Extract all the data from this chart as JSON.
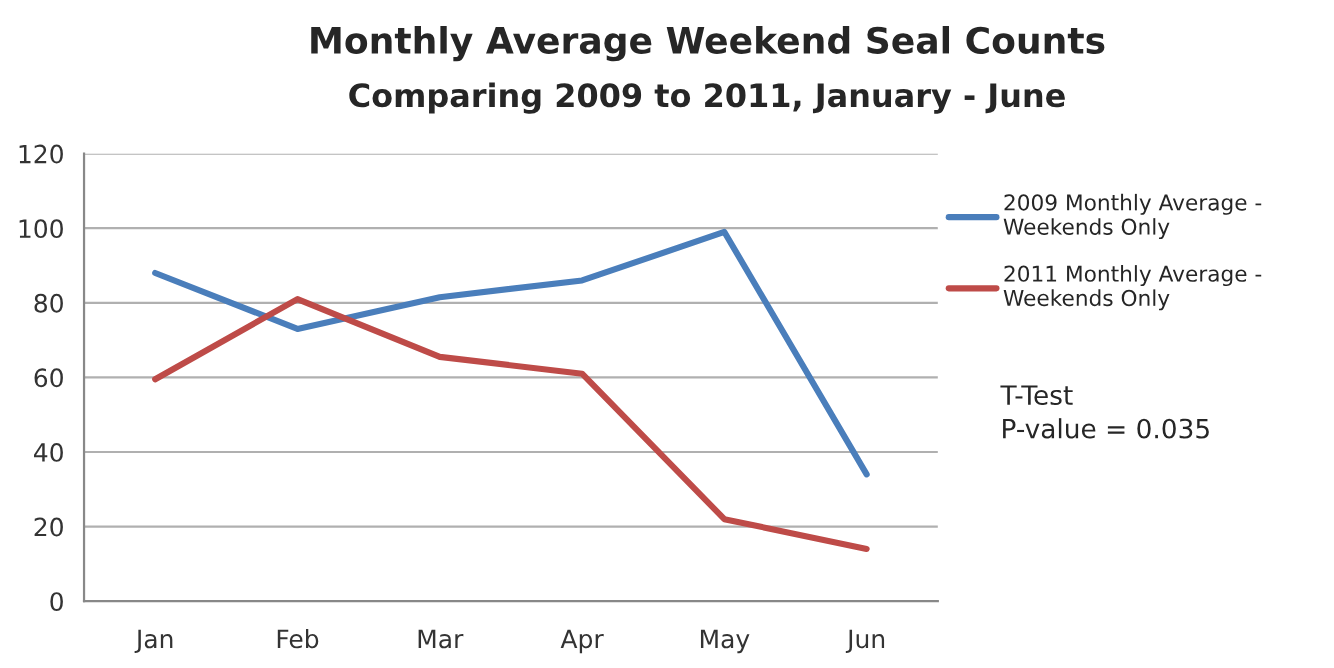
{
  "chart_data": {
    "type": "line",
    "title": "Monthly Average Weekend Seal Counts",
    "subtitle": "Comparing 2009 to 2011, January - June",
    "categories": [
      "Jan",
      "Feb",
      "Mar",
      "Apr",
      "May",
      "Jun"
    ],
    "series": [
      {
        "name": "2009 Monthly Average -\nWeekends Only",
        "color": "#4a7ebb",
        "values": [
          88,
          73,
          81.5,
          86,
          99,
          34
        ]
      },
      {
        "name": "2011 Monthly Average -\nWeekends Only",
        "color": "#be4b48",
        "values": [
          59.5,
          81,
          65.5,
          61,
          22,
          14
        ]
      }
    ],
    "ylim": [
      0,
      120
    ],
    "yticks": [
      0,
      20,
      40,
      60,
      80,
      100,
      120
    ],
    "grid": "y",
    "legend": "right",
    "marker": "none",
    "line_style": "solid",
    "annotations": [
      "T-Test\nP-value = 0.035"
    ]
  }
}
